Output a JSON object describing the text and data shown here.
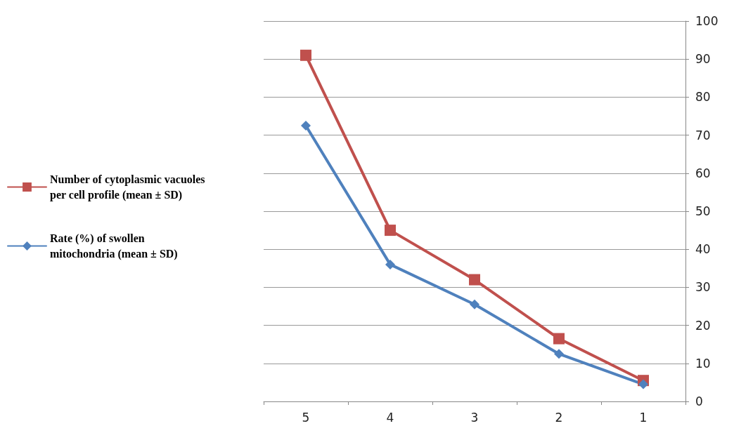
{
  "chart_data": {
    "type": "line",
    "categories": [
      "5",
      "4",
      "3",
      "2",
      "1"
    ],
    "series": [
      {
        "name": "Number of cytoplasmic vacuoles per cell profile (mean ± SD)",
        "color": "#c0504d",
        "marker": "square",
        "values": [
          91,
          45,
          32,
          16.5,
          5.5
        ]
      },
      {
        "name": "Rate (%) of swollen mitochondria (mean ± SD)",
        "color": "#4f81bd",
        "marker": "diamond",
        "values": [
          72.5,
          36,
          25.5,
          12.5,
          4.5
        ]
      }
    ],
    "ylim": [
      0,
      100
    ],
    "yticks": [
      0,
      10,
      20,
      30,
      40,
      50,
      60,
      70,
      80,
      90,
      100
    ],
    "grid": "y",
    "legend": "left"
  }
}
